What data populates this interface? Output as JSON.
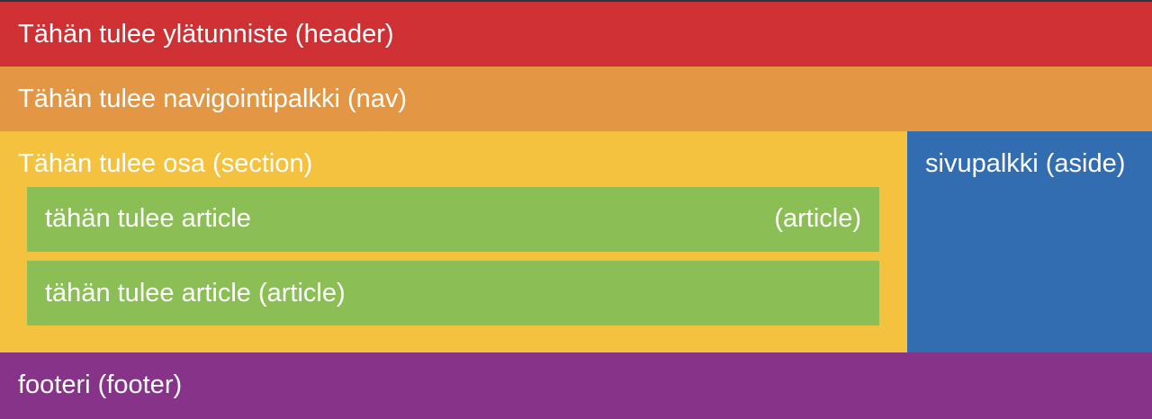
{
  "header": {
    "text": "Tähän tulee ylätunniste (header)",
    "color": "#cf3033"
  },
  "nav": {
    "text": "Tähän tulee navigointipalkki (nav)",
    "color": "#e39643"
  },
  "section": {
    "text": "Tähän tulee osa (section)",
    "color": "#f5c23f",
    "articles": [
      {
        "text": "tähän tulee article",
        "tag": "(article)",
        "color": "#8bbf55"
      },
      {
        "text": "tähän tulee article (article)",
        "color": "#8bbf55"
      }
    ]
  },
  "aside": {
    "text": "sivupalkki (aside)",
    "color": "#316db0"
  },
  "footer": {
    "text": "footeri (footer)",
    "color": "#88338a"
  }
}
